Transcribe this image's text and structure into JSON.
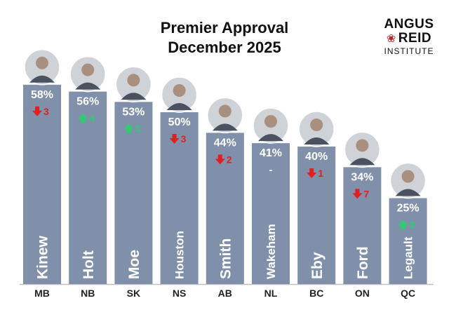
{
  "chart_data": {
    "type": "bar",
    "title_line1": "Premier Approval",
    "title_line2": "December 2025",
    "ylim": [
      0,
      100
    ],
    "categories": [
      "MB",
      "NB",
      "SK",
      "NS",
      "AB",
      "NL",
      "BC",
      "ON",
      "QC"
    ],
    "names": [
      "Kinew",
      "Holt",
      "Moe",
      "Houston",
      "Smith",
      "Wakeham",
      "Eby",
      "Ford",
      "Legault"
    ],
    "values": [
      58,
      56,
      53,
      50,
      44,
      41,
      40,
      34,
      25
    ],
    "value_labels": [
      "58%",
      "56%",
      "53%",
      "50%",
      "44%",
      "41%",
      "40%",
      "34%",
      "25%"
    ],
    "changes": [
      {
        "direction": "down",
        "amount": "3"
      },
      {
        "direction": "up",
        "amount": "4"
      },
      {
        "direction": "up",
        "amount": "3"
      },
      {
        "direction": "down",
        "amount": "3"
      },
      {
        "direction": "down",
        "amount": "2"
      },
      {
        "direction": "none",
        "amount": "-"
      },
      {
        "direction": "down",
        "amount": "1"
      },
      {
        "direction": "down",
        "amount": "7"
      },
      {
        "direction": "up",
        "amount": "3"
      }
    ]
  },
  "logo": {
    "line1": "ANGUS",
    "line2": "REID",
    "line3": "INSTITUTE"
  },
  "colors": {
    "bar": "#8090aa",
    "up": "#2ecc71",
    "down": "#e02020",
    "axis": "#bfbfbf",
    "leaf": "#c0242b"
  }
}
